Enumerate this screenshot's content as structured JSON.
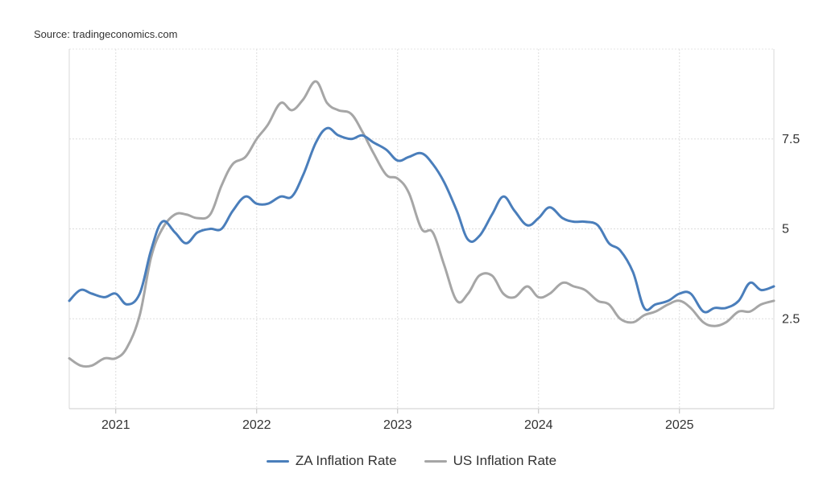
{
  "source_text": "Source: tradingeconomics.com",
  "chart_data": {
    "type": "line",
    "title": "",
    "xlabel": "",
    "ylabel": "",
    "x_tick_labels": [
      "2021",
      "2022",
      "2023",
      "2024",
      "2025"
    ],
    "y_tick_labels": [
      "2.5",
      "5",
      "7.5"
    ],
    "y_ticks": [
      2.5,
      5,
      7.5
    ],
    "xlim": [
      2020.67,
      2025.67
    ],
    "ylim": [
      0.0,
      10.0
    ],
    "grid": true,
    "legend_position": "bottom-center",
    "series": [
      {
        "name": "ZA Inflation Rate",
        "color": "#4a7ebb",
        "x": [
          2020.67,
          2020.75,
          2020.83,
          2020.92,
          2021.0,
          2021.08,
          2021.17,
          2021.25,
          2021.33,
          2021.42,
          2021.5,
          2021.58,
          2021.67,
          2021.75,
          2021.83,
          2021.92,
          2022.0,
          2022.08,
          2022.17,
          2022.25,
          2022.33,
          2022.42,
          2022.5,
          2022.58,
          2022.67,
          2022.75,
          2022.83,
          2022.92,
          2023.0,
          2023.08,
          2023.17,
          2023.25,
          2023.33,
          2023.42,
          2023.5,
          2023.58,
          2023.67,
          2023.75,
          2023.83,
          2023.92,
          2024.0,
          2024.08,
          2024.17,
          2024.25,
          2024.33,
          2024.42,
          2024.5,
          2024.58,
          2024.67,
          2024.75,
          2024.83,
          2024.92,
          2025.0,
          2025.08,
          2025.17,
          2025.25,
          2025.33,
          2025.42,
          2025.5,
          2025.58,
          2025.67
        ],
        "values": [
          3.0,
          3.3,
          3.2,
          3.1,
          3.2,
          2.9,
          3.2,
          4.4,
          5.2,
          4.9,
          4.6,
          4.9,
          5.0,
          5.0,
          5.5,
          5.9,
          5.7,
          5.7,
          5.9,
          5.9,
          6.5,
          7.4,
          7.8,
          7.6,
          7.5,
          7.6,
          7.4,
          7.2,
          6.9,
          7.0,
          7.1,
          6.8,
          6.3,
          5.5,
          4.7,
          4.8,
          5.4,
          5.9,
          5.5,
          5.1,
          5.3,
          5.6,
          5.3,
          5.2,
          5.2,
          5.1,
          4.6,
          4.4,
          3.8,
          2.8,
          2.9,
          3.0,
          3.2,
          3.2,
          2.7,
          2.8,
          2.8,
          3.0,
          3.5,
          3.3,
          3.4
        ]
      },
      {
        "name": "US Inflation Rate",
        "color": "#a6a6a6",
        "x": [
          2020.67,
          2020.75,
          2020.83,
          2020.92,
          2021.0,
          2021.08,
          2021.17,
          2021.25,
          2021.33,
          2021.42,
          2021.5,
          2021.58,
          2021.67,
          2021.75,
          2021.83,
          2021.92,
          2022.0,
          2022.08,
          2022.17,
          2022.25,
          2022.33,
          2022.42,
          2022.5,
          2022.58,
          2022.67,
          2022.75,
          2022.83,
          2022.92,
          2023.0,
          2023.08,
          2023.17,
          2023.25,
          2023.33,
          2023.42,
          2023.5,
          2023.58,
          2023.67,
          2023.75,
          2023.83,
          2023.92,
          2024.0,
          2024.08,
          2024.17,
          2024.25,
          2024.33,
          2024.42,
          2024.5,
          2024.58,
          2024.67,
          2024.75,
          2024.83,
          2024.92,
          2025.0,
          2025.08,
          2025.17,
          2025.25,
          2025.33,
          2025.42,
          2025.5,
          2025.58,
          2025.67
        ],
        "values": [
          1.4,
          1.2,
          1.2,
          1.4,
          1.4,
          1.7,
          2.6,
          4.2,
          5.0,
          5.4,
          5.4,
          5.3,
          5.4,
          6.2,
          6.8,
          7.0,
          7.5,
          7.9,
          8.5,
          8.3,
          8.6,
          9.1,
          8.5,
          8.3,
          8.2,
          7.7,
          7.1,
          6.5,
          6.4,
          6.0,
          5.0,
          4.9,
          4.0,
          3.0,
          3.2,
          3.7,
          3.7,
          3.2,
          3.1,
          3.4,
          3.1,
          3.2,
          3.5,
          3.4,
          3.3,
          3.0,
          2.9,
          2.5,
          2.4,
          2.6,
          2.7,
          2.9,
          3.0,
          2.8,
          2.4,
          2.3,
          2.4,
          2.7,
          2.7,
          2.9,
          3.0
        ]
      }
    ]
  }
}
